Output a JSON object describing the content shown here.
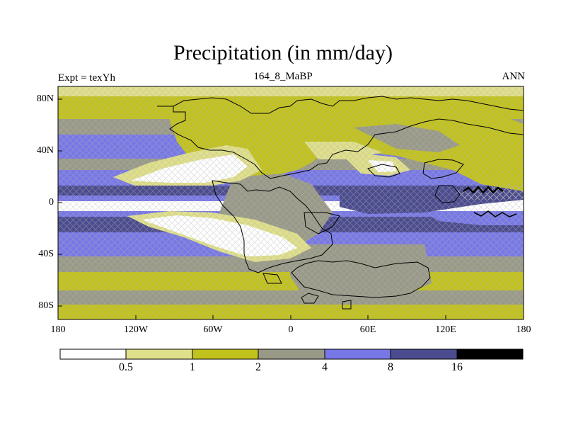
{
  "figure": {
    "title": "Precipitation (in mm/day)",
    "left_label": "Expt = texYh",
    "center_label": "164_8_MaBP",
    "right_label": "ANN"
  },
  "map": {
    "lon_ticks": [
      "180",
      "120W",
      "60W",
      "0",
      "60E",
      "120E",
      "180"
    ],
    "lat_ticks": [
      "80N",
      "40N",
      "0",
      "40S",
      "80S"
    ],
    "lon_range": [
      -180,
      180
    ],
    "lat_range": [
      -90,
      90
    ],
    "hatching": "cross-hatch marks over selected regions"
  },
  "legend": {
    "levels": [
      "0.5",
      "1",
      "2",
      "4",
      "8",
      "16"
    ],
    "colors": [
      "#ffffff",
      "#e0e08a",
      "#c2c21c",
      "#999988",
      "#7777e6",
      "#4b4b8f",
      "#000000"
    ]
  }
}
